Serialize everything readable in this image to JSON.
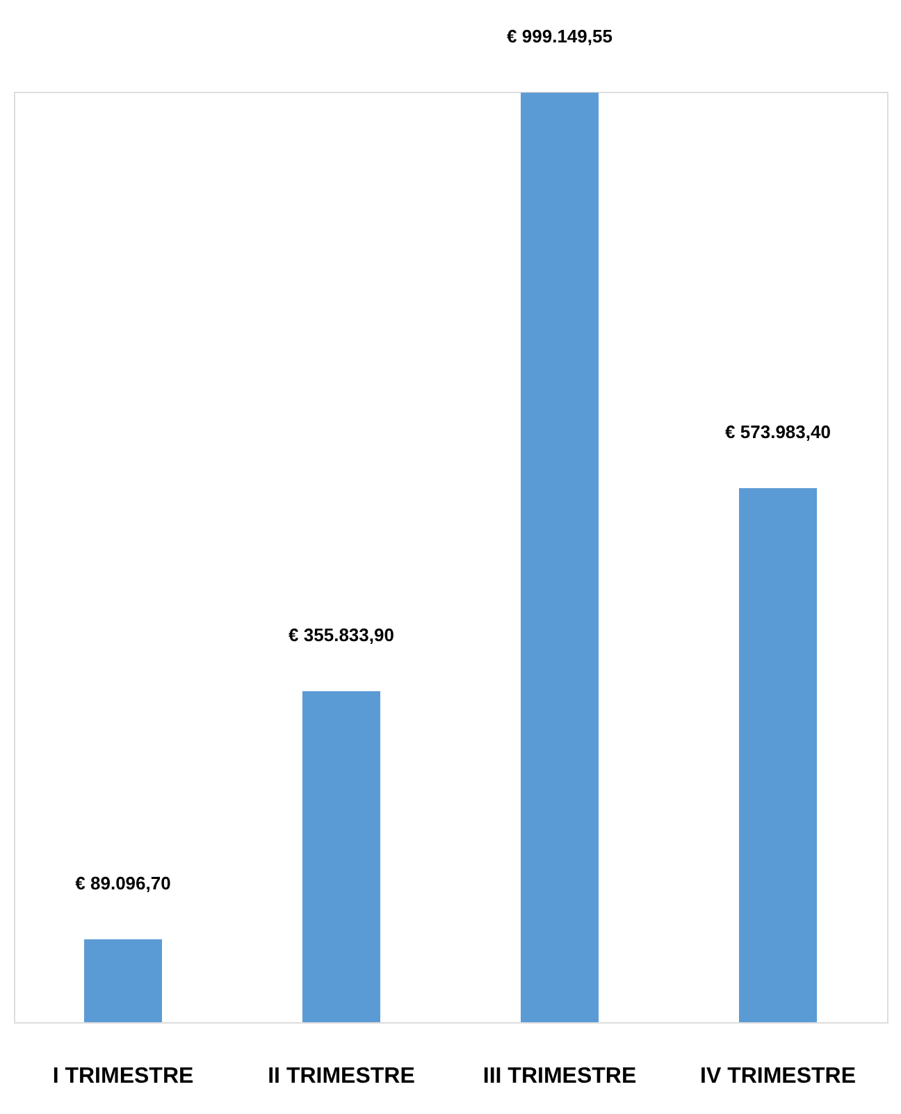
{
  "chart_data": {
    "type": "bar",
    "categories": [
      "I TRIMESTRE",
      "II TRIMESTRE",
      "III TRIMESTRE",
      "IV TRIMESTRE"
    ],
    "values": [
      89096.7,
      355833.9,
      999149.55,
      573983.4
    ],
    "value_labels": [
      "€ 89.096,70",
      "€ 355.833,90",
      "€ 999.149,55",
      "€ 573.983,40"
    ],
    "color": "#5b9bd5"
  }
}
